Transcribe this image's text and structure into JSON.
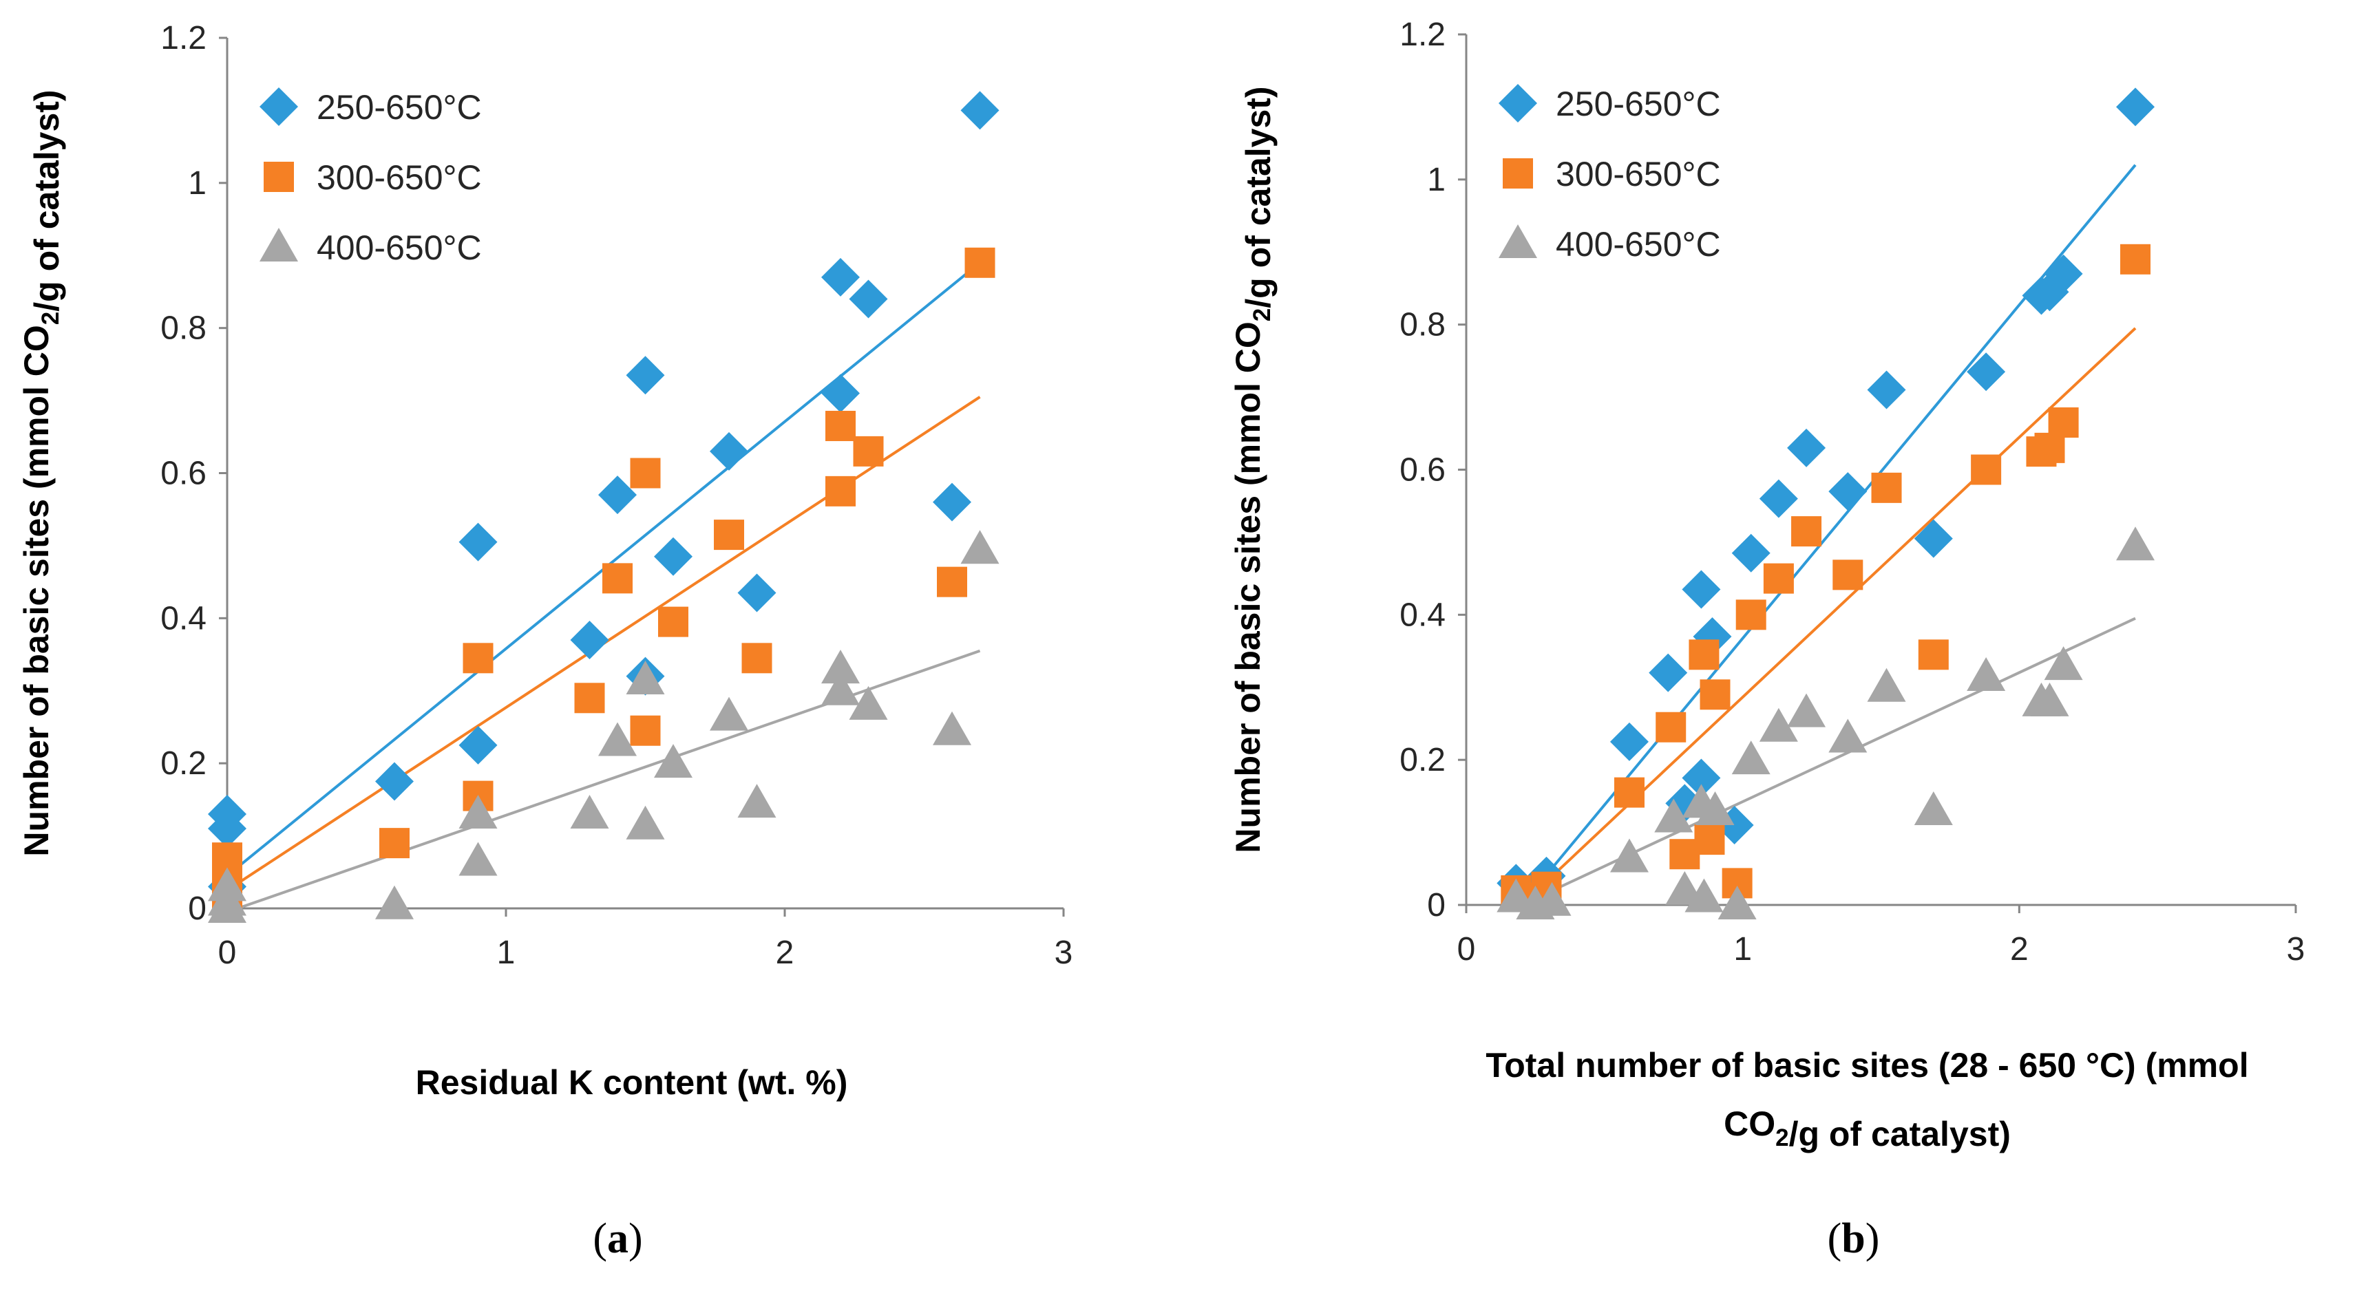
{
  "chart_data": [
    {
      "type": "scatter",
      "panel_label": "(a)",
      "xlabel": "Residual K content (wt. %)",
      "ylabel": "Number of basic sites (mmol CO2/g of catalyst)",
      "xlim": [
        0,
        3
      ],
      "ylim": [
        0,
        1.2
      ],
      "xticks": [
        "0",
        "1",
        "2",
        "3"
      ],
      "yticks": [
        "0",
        "0.2",
        "0.4",
        "0.6",
        "0.8",
        "1",
        "1.2"
      ],
      "legend_position": "top-left",
      "series": [
        {
          "name": "250-650°C",
          "color": "#2E9AD8",
          "marker": "diamond",
          "x": [
            0,
            0,
            0,
            0.6,
            0.9,
            0.9,
            1.3,
            1.4,
            1.5,
            1.5,
            1.6,
            1.8,
            1.9,
            2.2,
            2.2,
            2.3,
            2.6,
            2.7
          ],
          "y": [
            0.13,
            0.11,
            0.03,
            0.175,
            0.505,
            0.225,
            0.37,
            0.57,
            0.735,
            0.32,
            0.485,
            0.63,
            0.435,
            0.87,
            0.71,
            0.84,
            0.56,
            1.1
          ],
          "trend": [
            [
              0,
              0.045
            ],
            [
              2.7,
              0.89
            ]
          ]
        },
        {
          "name": "300-650°C",
          "color": "#F58024",
          "marker": "square",
          "x": [
            0,
            0,
            0,
            0.6,
            0.9,
            0.9,
            1.3,
            1.4,
            1.5,
            1.5,
            1.6,
            1.8,
            1.9,
            2.2,
            2.2,
            2.3,
            2.6,
            2.7
          ],
          "y": [
            0.07,
            0.04,
            0.02,
            0.09,
            0.345,
            0.155,
            0.29,
            0.455,
            0.6,
            0.245,
            0.395,
            0.515,
            0.345,
            0.665,
            0.575,
            0.63,
            0.45,
            0.89
          ],
          "trend": [
            [
              0,
              0.025
            ],
            [
              2.7,
              0.705
            ]
          ]
        },
        {
          "name": "400-650°C",
          "color": "#A6A6A6",
          "marker": "triangle",
          "x": [
            0,
            0,
            0,
            0.6,
            0.9,
            0.9,
            1.3,
            1.4,
            1.5,
            1.5,
            1.6,
            1.8,
            1.9,
            2.2,
            2.2,
            2.3,
            2.6,
            2.7
          ],
          "y": [
            0.03,
            0.01,
            0.0,
            0.005,
            0.13,
            0.065,
            0.13,
            0.23,
            0.315,
            0.115,
            0.2,
            0.265,
            0.145,
            0.33,
            0.3,
            0.28,
            0.245,
            0.495
          ],
          "trend": [
            [
              0,
              -0.005
            ],
            [
              2.7,
              0.355
            ]
          ]
        }
      ]
    },
    {
      "type": "scatter",
      "panel_label": "(b)",
      "xlabel": "Total number of basic sites (28 - 650 °C) (mmol CO2/g of catalyst)",
      "ylabel": "Number of basic sites (mmol CO2/g of catalyst)",
      "xlim": [
        0,
        3
      ],
      "ylim": [
        0,
        1.2
      ],
      "xticks": [
        "0",
        "1",
        "2",
        "3"
      ],
      "yticks": [
        "0",
        "0.2",
        "0.4",
        "0.6",
        "0.8",
        "1",
        "1.2"
      ],
      "legend_position": "top-left",
      "series": [
        {
          "name": "250-650°C",
          "color": "#2E9AD8",
          "marker": "diamond",
          "x": [
            0.18,
            0.25,
            0.29,
            0.59,
            0.73,
            0.79,
            0.85,
            0.85,
            0.89,
            0.97,
            1.03,
            1.13,
            1.23,
            1.38,
            1.52,
            1.69,
            1.88,
            2.08,
            2.11,
            2.16,
            2.42
          ],
          "y": [
            0.03,
            0.02,
            0.04,
            0.225,
            0.32,
            0.14,
            0.435,
            0.175,
            0.37,
            0.11,
            0.485,
            0.56,
            0.63,
            0.57,
            0.71,
            0.505,
            0.735,
            0.84,
            0.845,
            0.87,
            1.1
          ],
          "trend": [
            [
              0.2,
              0.0
            ],
            [
              2.42,
              1.02
            ]
          ]
        },
        {
          "name": "300-650°C",
          "color": "#F58024",
          "marker": "square",
          "x": [
            0.18,
            0.25,
            0.29,
            0.59,
            0.74,
            0.79,
            0.86,
            0.88,
            0.9,
            0.98,
            1.03,
            1.13,
            1.23,
            1.38,
            1.52,
            1.69,
            1.88,
            2.08,
            2.11,
            2.16,
            2.42
          ],
          "y": [
            0.02,
            0.01,
            0.025,
            0.155,
            0.245,
            0.07,
            0.345,
            0.09,
            0.29,
            0.03,
            0.4,
            0.45,
            0.515,
            0.455,
            0.575,
            0.345,
            0.6,
            0.625,
            0.63,
            0.665,
            0.89
          ],
          "trend": [
            [
              0.2,
              0.0
            ],
            [
              2.42,
              0.795
            ]
          ]
        },
        {
          "name": "400-650°C",
          "color": "#A6A6A6",
          "marker": "triangle",
          "x": [
            0.18,
            0.25,
            0.31,
            0.59,
            0.75,
            0.79,
            0.85,
            0.86,
            0.9,
            0.98,
            1.03,
            1.13,
            1.23,
            1.38,
            1.52,
            1.69,
            1.88,
            2.08,
            2.11,
            2.16,
            2.42
          ],
          "y": [
            0.01,
            0.0,
            0.005,
            0.065,
            0.12,
            0.02,
            0.14,
            0.01,
            0.13,
            0.0,
            0.2,
            0.245,
            0.265,
            0.23,
            0.3,
            0.13,
            0.315,
            0.28,
            0.28,
            0.33,
            0.495
          ],
          "trend": [
            [
              0.2,
              0.0
            ],
            [
              2.42,
              0.395
            ]
          ]
        }
      ]
    }
  ]
}
